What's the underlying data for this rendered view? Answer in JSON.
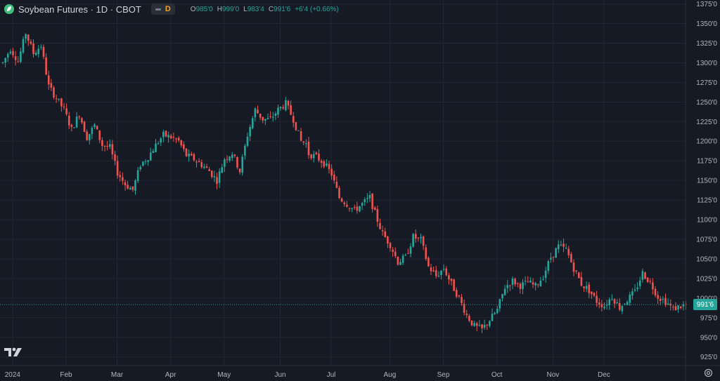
{
  "legend": {
    "symbol_title": "Soybean Futures · 1D · CBOT",
    "interval_badge": "D",
    "o_label": "O",
    "o_value": "985'0",
    "h_label": "H",
    "h_value": "999'0",
    "l_label": "L",
    "l_value": "983'4",
    "c_label": "C",
    "c_value": "991'6",
    "change": "+6'4 (+0.66%)"
  },
  "last_price_label": "991'6",
  "colors": {
    "background": "#161a25",
    "grid": "#232632",
    "up": "#26a69a",
    "down": "#ef5350",
    "axis_text": "#b2b5be",
    "last_line": "#26a69a"
  },
  "chart_data": {
    "type": "candlestick",
    "title": "Soybean Futures · 1D · CBOT",
    "y_axis_ticks": [
      "925'0",
      "950'0",
      "975'0",
      "1000'0",
      "1025'0",
      "1050'0",
      "1075'0",
      "1100'0",
      "1125'0",
      "1150'0",
      "1175'0",
      "1200'0",
      "1225'0",
      "1250'0",
      "1275'0",
      "1300'0",
      "1325'0",
      "1350'0",
      "1375'0"
    ],
    "y_axis_tick_values": [
      925,
      950,
      975,
      1000,
      1025,
      1050,
      1075,
      1100,
      1125,
      1150,
      1175,
      1200,
      1225,
      1250,
      1275,
      1300,
      1325,
      1350,
      1375
    ],
    "ylim": [
      914,
      1380
    ],
    "x_axis_labels": [
      "2024",
      "Feb",
      "Mar",
      "Apr",
      "May",
      "Jun",
      "Jul",
      "Aug",
      "Sep",
      "Oct",
      "Nov",
      "Dec"
    ],
    "x_axis_label_index": [
      3,
      24,
      44,
      65,
      86,
      108,
      128,
      151,
      172,
      193,
      215,
      235
    ],
    "last_price": 991.75,
    "grid": true,
    "trend_path": [
      [
        0,
        1300
      ],
      [
        3,
        1318
      ],
      [
        6,
        1302
      ],
      [
        9,
        1338
      ],
      [
        12,
        1312
      ],
      [
        15,
        1322
      ],
      [
        18,
        1270
      ],
      [
        21,
        1255
      ],
      [
        24,
        1240
      ],
      [
        27,
        1215
      ],
      [
        30,
        1235
      ],
      [
        33,
        1205
      ],
      [
        36,
        1220
      ],
      [
        39,
        1195
      ],
      [
        42,
        1192
      ],
      [
        45,
        1160
      ],
      [
        48,
        1145
      ],
      [
        51,
        1138
      ],
      [
        54,
        1170
      ],
      [
        57,
        1180
      ],
      [
        60,
        1195
      ],
      [
        63,
        1208
      ],
      [
        66,
        1205
      ],
      [
        69,
        1200
      ],
      [
        72,
        1182
      ],
      [
        75,
        1177
      ],
      [
        78,
        1170
      ],
      [
        81,
        1162
      ],
      [
        84,
        1150
      ],
      [
        87,
        1178
      ],
      [
        90,
        1185
      ],
      [
        93,
        1162
      ],
      [
        96,
        1208
      ],
      [
        99,
        1240
      ],
      [
        102,
        1228
      ],
      [
        105,
        1228
      ],
      [
        108,
        1240
      ],
      [
        111,
        1248
      ],
      [
        114,
        1228
      ],
      [
        117,
        1200
      ],
      [
        119,
        1197
      ],
      [
        120,
        1184
      ],
      [
        123,
        1180
      ],
      [
        126,
        1172
      ],
      [
        129,
        1158
      ],
      [
        132,
        1128
      ],
      [
        135,
        1120
      ],
      [
        138,
        1112
      ],
      [
        141,
        1120
      ],
      [
        144,
        1128
      ],
      [
        146,
        1108
      ],
      [
        149,
        1082
      ],
      [
        152,
        1068
      ],
      [
        155,
        1046
      ],
      [
        158,
        1052
      ],
      [
        161,
        1078
      ],
      [
        164,
        1074
      ],
      [
        167,
        1040
      ],
      [
        170,
        1028
      ],
      [
        173,
        1038
      ],
      [
        176,
        1018
      ],
      [
        179,
        1000
      ],
      [
        182,
        978
      ],
      [
        185,
        964
      ],
      [
        188,
        960
      ],
      [
        191,
        972
      ],
      [
        194,
        985
      ],
      [
        197,
        1014
      ],
      [
        200,
        1022
      ],
      [
        203,
        1016
      ],
      [
        206,
        1020
      ],
      [
        209,
        1015
      ],
      [
        212,
        1028
      ],
      [
        215,
        1052
      ],
      [
        218,
        1066
      ],
      [
        221,
        1062
      ],
      [
        224,
        1038
      ],
      [
        227,
        1018
      ],
      [
        230,
        1010
      ],
      [
        233,
        996
      ],
      [
        236,
        990
      ],
      [
        239,
        1002
      ],
      [
        242,
        988
      ],
      [
        245,
        998
      ],
      [
        248,
        1008
      ],
      [
        251,
        1032
      ],
      [
        254,
        1020
      ],
      [
        257,
        1002
      ],
      [
        260,
        996
      ],
      [
        263,
        986
      ],
      [
        266,
        990
      ],
      [
        268,
        991
      ]
    ]
  }
}
